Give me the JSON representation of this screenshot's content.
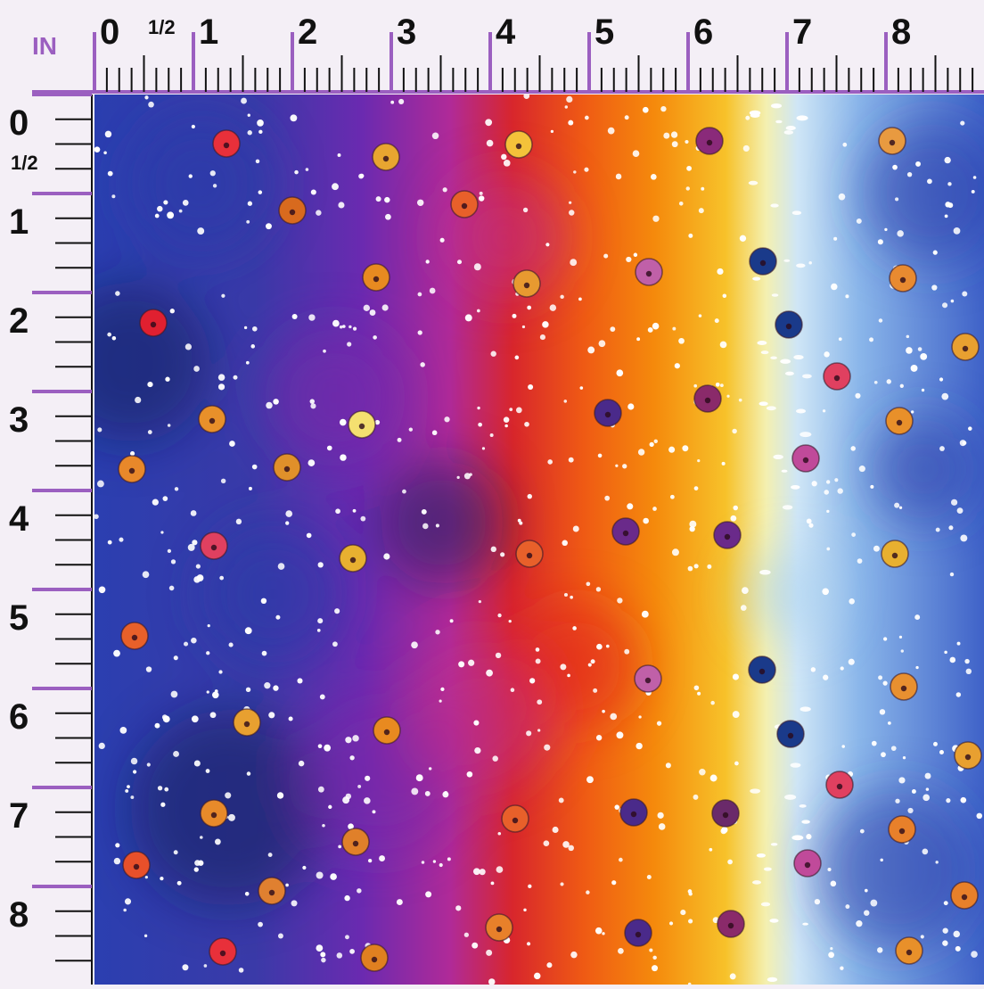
{
  "ruler": {
    "unit_label": "IN",
    "half_label": "1/2",
    "top_numbers": [
      "0",
      "1",
      "2",
      "3",
      "4",
      "5",
      "6",
      "7",
      "8"
    ],
    "left_numbers": [
      "0",
      "1",
      "2",
      "3",
      "4",
      "5",
      "6",
      "7",
      "8"
    ],
    "major_tick_color": "#9b5fc0",
    "minor_tick_color": "#111111"
  },
  "pattern": {
    "description_colors": {
      "deep_blue": "#2a3aa8",
      "navy": "#141c5c",
      "purple": "#7a2aa8",
      "magenta": "#c0308a",
      "red": "#e0201e",
      "orange": "#f48a0c",
      "yellow": "#f6e04a",
      "light_blue": "#a8d0f0",
      "sky_blue": "#5a8ad8"
    }
  }
}
